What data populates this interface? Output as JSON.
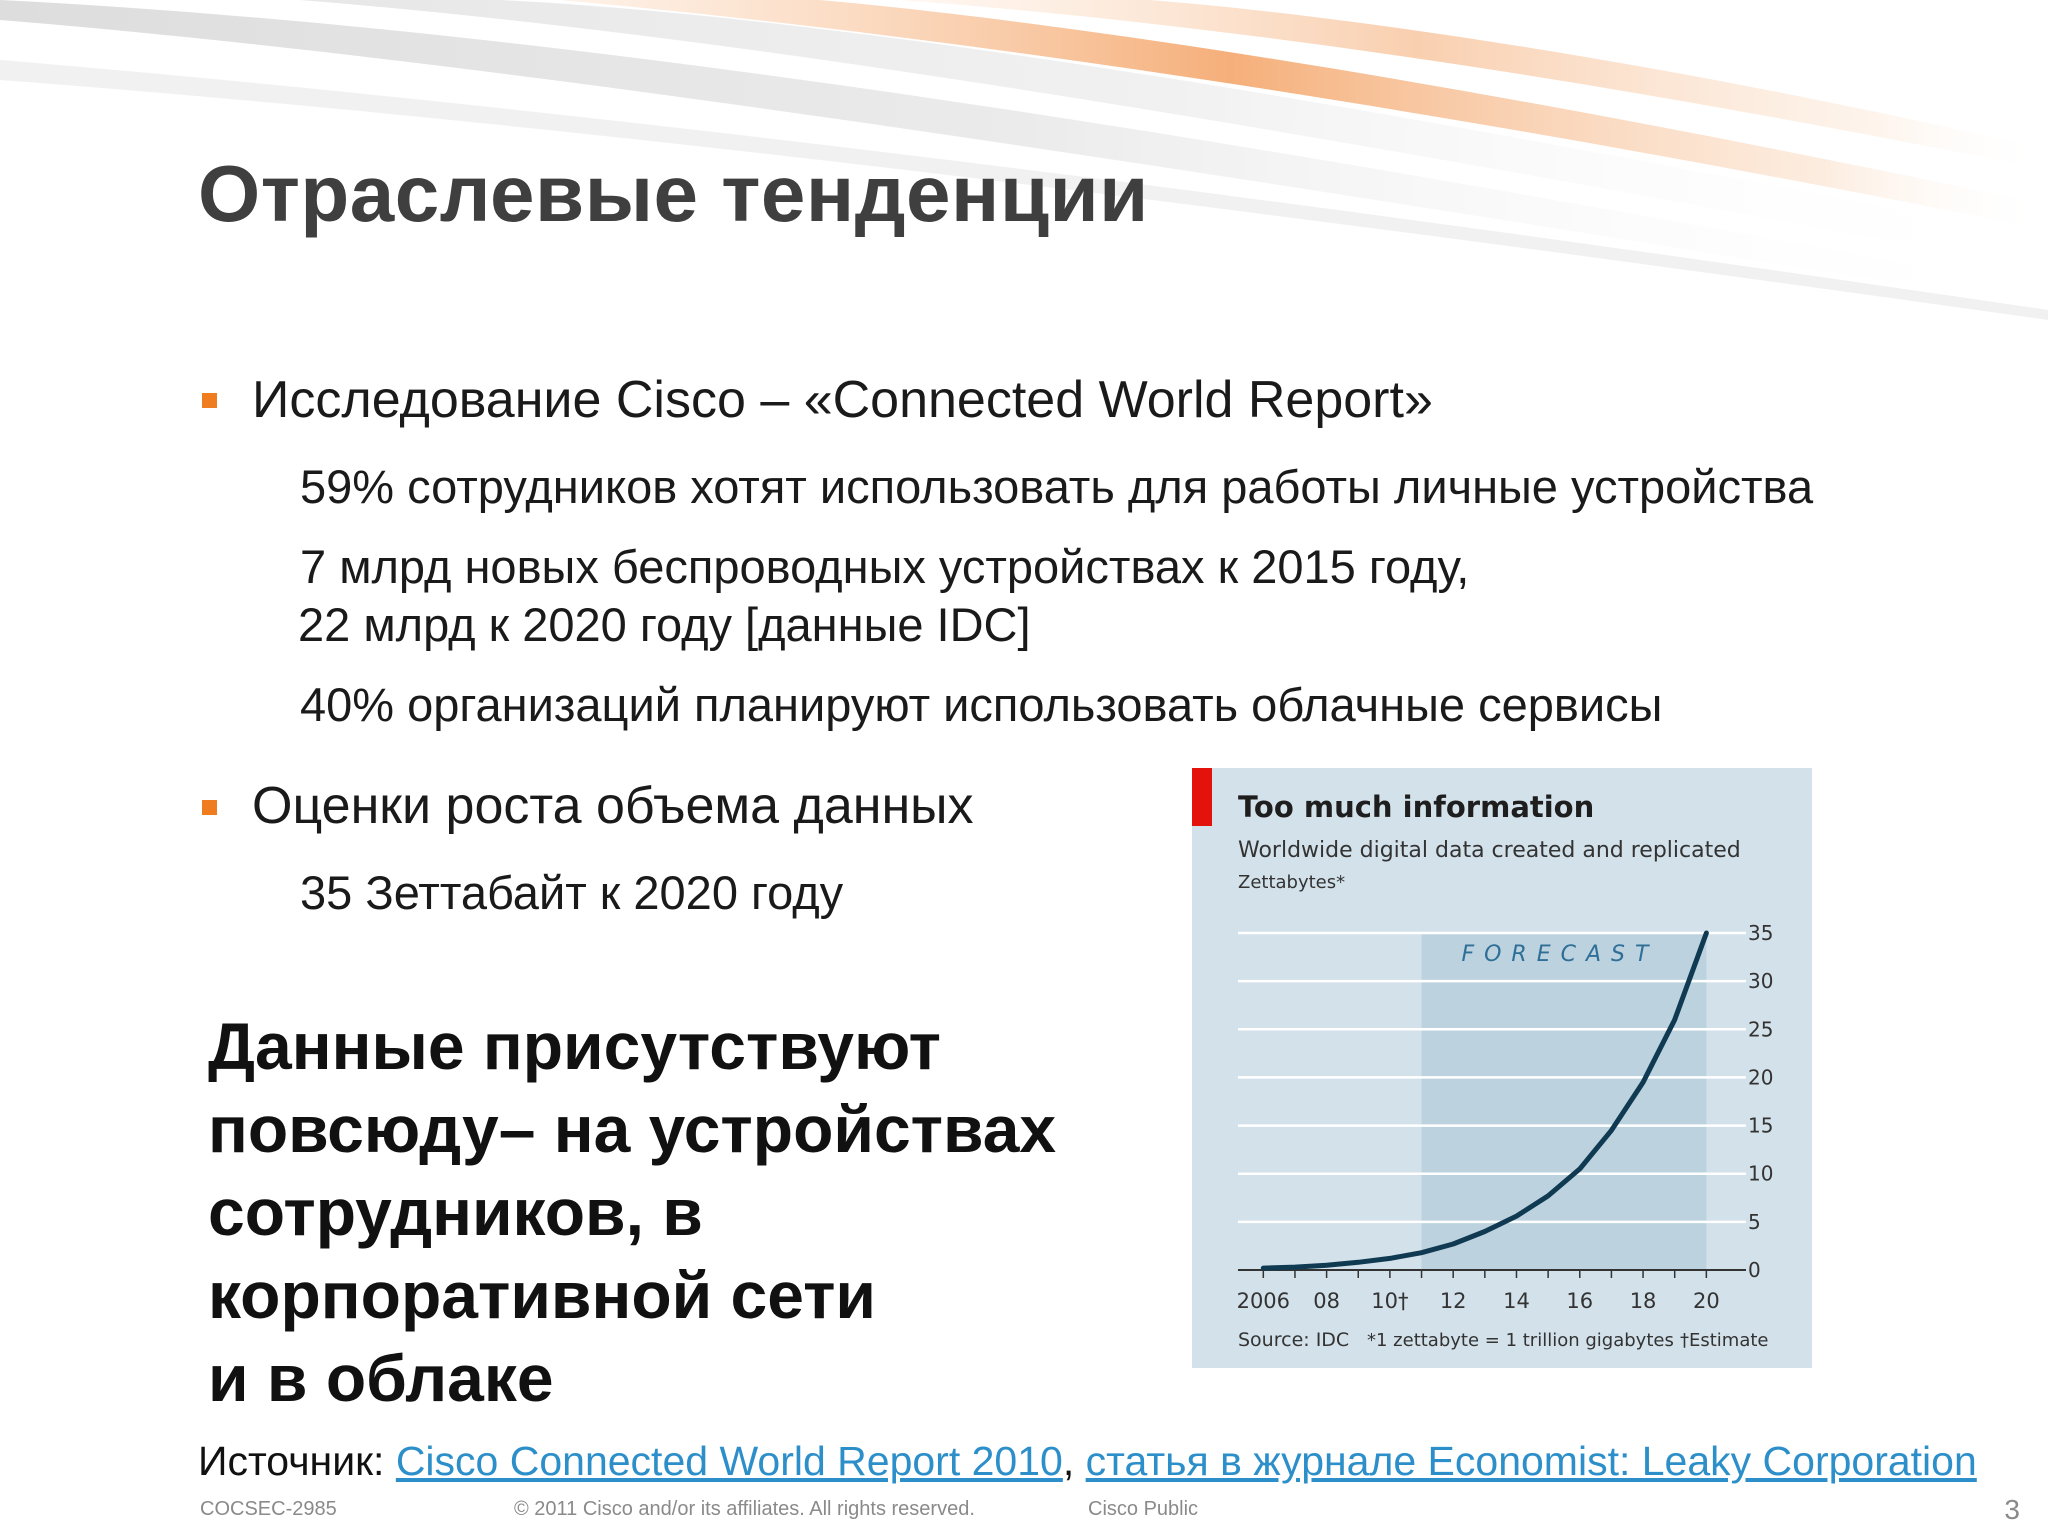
{
  "slide": {
    "title": "Отраслевые тенденции",
    "bullets": [
      {
        "text": "Исследование Cisco – «Connected World Report»",
        "sub": [
          "59% сотрудников хотят использовать для работы личные устройства",
          "7 млрд новых беспроводных устройствах к 2015 году,",
          "22 млрд к 2020 году [данные IDC]",
          "40% организаций планируют использовать облачные сервисы"
        ]
      },
      {
        "text": "Оценки роста объема данных",
        "sub": [
          "35 Зеттабайт к 2020 году"
        ]
      }
    ],
    "highlight": [
      "Данные присутствуют",
      "повсюду– на устройствах",
      "сотрудников, в",
      "корпоративной сети",
      "и в облаке"
    ],
    "source": {
      "label": "Источник:",
      "link1": "Cisco Connected World Report 2010",
      "sep": ",",
      "link2": "статья в журнале Economist: Leaky Corporation"
    },
    "footer": {
      "code": "COCSEC-2985",
      "copyright": "© 2011 Cisco and/or its affiliates. All rights reserved.",
      "classification": "Cisco Public",
      "page": "3"
    },
    "colors": {
      "bullet": "#ef7c1e",
      "link": "#2d8fc9",
      "chart_bg": "#d3e1ea",
      "forecast_bg": "#bcd2de",
      "line": "#103a52",
      "accent_red": "#e3120b"
    }
  },
  "chart_data": {
    "type": "line",
    "title": "Too much information",
    "subtitle": "Worldwide digital data created and replicated",
    "ylabel": "Zettabytes*",
    "forecast_label": "FORECAST",
    "x": [
      2006,
      2007,
      2008,
      2009,
      2010,
      2011,
      2012,
      2013,
      2014,
      2015,
      2016,
      2017,
      2018,
      2019,
      2020
    ],
    "series": [
      {
        "values": [
          0.2,
          0.3,
          0.5,
          0.8,
          1.2,
          1.8,
          2.7,
          4.0,
          5.6,
          7.7,
          10.5,
          14.5,
          19.5,
          26.0,
          35.0
        ]
      }
    ],
    "xlim": [
      2005.2,
      2021
    ],
    "ylim": [
      0,
      35
    ],
    "y_ticks": [
      0,
      5,
      10,
      15,
      20,
      25,
      30,
      35
    ],
    "x_tick_labels": [
      {
        "x": 2006,
        "label": "2006"
      },
      {
        "x": 2008,
        "label": "08"
      },
      {
        "x": 2010,
        "label": "10†"
      },
      {
        "x": 2012,
        "label": "12"
      },
      {
        "x": 2014,
        "label": "14"
      },
      {
        "x": 2016,
        "label": "16"
      },
      {
        "x": 2018,
        "label": "18"
      },
      {
        "x": 2020,
        "label": "20"
      }
    ],
    "forecast_range": [
      2011,
      2020
    ],
    "grid": true,
    "source": "Source: IDC",
    "footnote": "*1 zettabyte = 1 trillion gigabytes",
    "estimate_note": "†Estimate"
  }
}
